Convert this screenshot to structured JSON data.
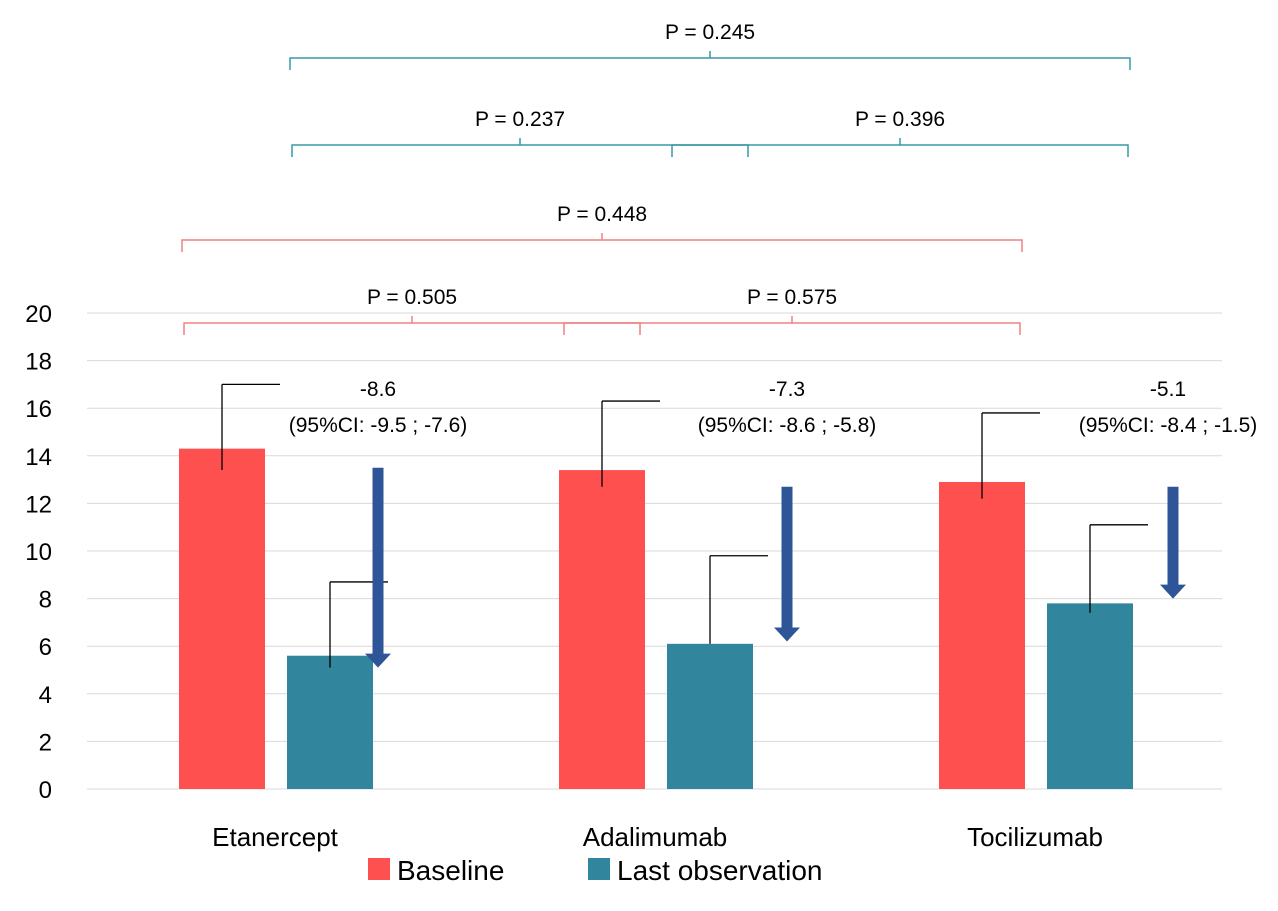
{
  "chart_data": {
    "type": "bar",
    "categories": [
      "Etanercept",
      "Adalimumab",
      "Tocilizumab"
    ],
    "series": [
      {
        "name": "Baseline",
        "values": [
          14.3,
          13.4,
          12.9
        ],
        "ci_low": [
          13.4,
          12.7,
          12.2
        ],
        "ci_high": [
          17.0,
          16.3,
          15.8
        ]
      },
      {
        "name": "Last observation",
        "values": [
          5.6,
          6.1,
          7.8
        ],
        "ci_low": [
          5.1,
          6.1,
          7.4
        ],
        "ci_high": [
          8.7,
          9.8,
          11.1
        ]
      }
    ],
    "changes": [
      {
        "value": "-8.6",
        "ci": "(95%CI: -9.5 ; -7.6)",
        "from": 13.5,
        "to": 5.1
      },
      {
        "value": "-7.3",
        "ci": "(95%CI: -8.6 ; -5.8)",
        "from": 12.7,
        "to": 6.2
      },
      {
        "value": "-5.1",
        "ci": "(95%CI: -8.4 ; -1.5)",
        "from": 12.7,
        "to": 8.0
      }
    ],
    "comparisons": [
      {
        "group": "baseline",
        "from": 0,
        "to": 1,
        "label": "P = 0.505",
        "level": 1
      },
      {
        "group": "baseline",
        "from": 1,
        "to": 2,
        "label": "P = 0.575",
        "level": 1
      },
      {
        "group": "baseline",
        "from": 0,
        "to": 2,
        "label": "P = 0.448",
        "level": 2
      },
      {
        "group": "last",
        "from": 0,
        "to": 1,
        "label": "P = 0.237",
        "level": 3
      },
      {
        "group": "last",
        "from": 1,
        "to": 2,
        "label": "P = 0.396",
        "level": 3
      },
      {
        "group": "last",
        "from": 0,
        "to": 2,
        "label": "P = 0.245",
        "level": 4
      }
    ],
    "yticks": [
      "0",
      "2",
      "4",
      "6",
      "8",
      "10",
      "12",
      "14",
      "16",
      "18",
      "20"
    ],
    "ylim": [
      0,
      20
    ],
    "grid": true,
    "legend_position": "bottom",
    "colors": {
      "baseline": "#ff5050",
      "last": "#31859c",
      "arrow": "#2e5597",
      "bracket_baseline": "#f08080",
      "bracket_last": "#3a9aa5",
      "grid": "#d9d9d9"
    }
  }
}
